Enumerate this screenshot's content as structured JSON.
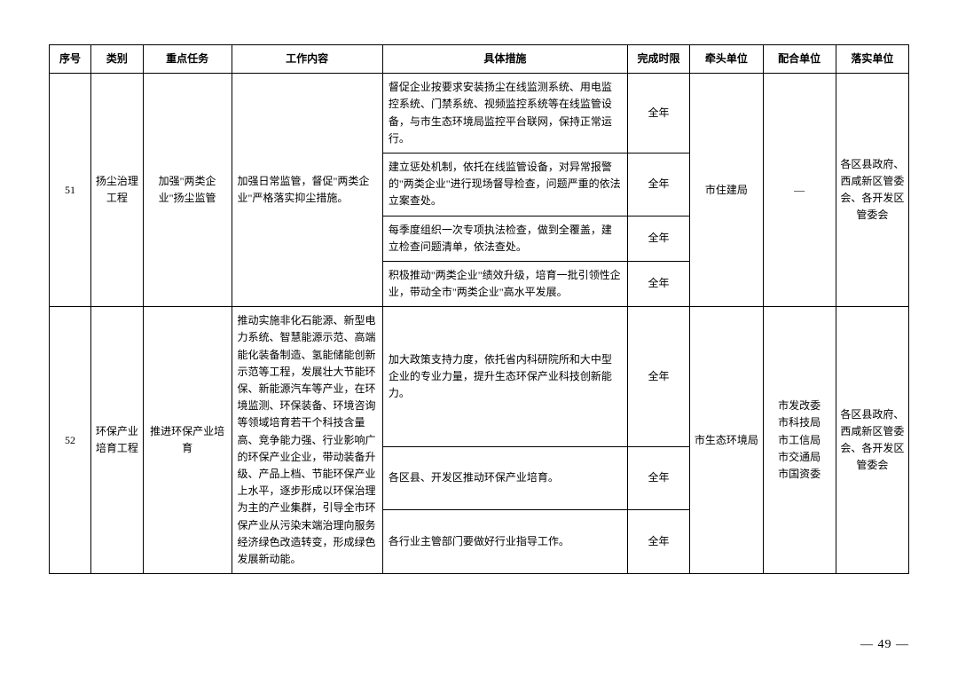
{
  "headers": {
    "seq": "序号",
    "category": "类别",
    "task": "重点任务",
    "content": "工作内容",
    "measure": "具体措施",
    "deadline": "完成时限",
    "lead": "牵头单位",
    "coop": "配合单位",
    "impl": "落实单位"
  },
  "rows": [
    {
      "seq": "51",
      "category": "扬尘治理工程",
      "task": "加强\"两类企业\"扬尘监管",
      "content": "加强日常监管，督促\"两类企业\"严格落实抑尘措施。",
      "measures": [
        "督促企业按要求安装扬尘在线监测系统、用电监控系统、门禁系统、视频监控系统等在线监管设备，与市生态环境局监控平台联网，保持正常运行。",
        "建立惩处机制，依托在线监管设备，对异常报警的\"两类企业\"进行现场督导检查，问题严重的依法立案查处。",
        "每季度组织一次专项执法检查，做到全覆盖，建立检查问题清单，依法查处。",
        "积极推动\"两类企业\"绩效升级，培育一批引领性企业，带动全市\"两类企业\"高水平发展。"
      ],
      "deadlines": [
        "全年",
        "全年",
        "全年",
        "全年"
      ],
      "lead": "市住建局",
      "coop": "—",
      "impl": "各区县政府、西咸新区管委会、各开发区管委会"
    },
    {
      "seq": "52",
      "category": "环保产业培育工程",
      "task": "推进环保产业培育",
      "content": "推动实施非化石能源、新型电力系统、智慧能源示范、高端能化装备制造、氢能储能创新示范等工程，发展壮大节能环保、新能源汽车等产业，在环境监测、环保装备、环境咨询等领域培育若干个科技含量高、竞争能力强、行业影响广的环保产业企业，带动装备升级、产品上档、节能环保产业上水平，逐步形成以环保治理为主的产业集群，引导全市环保产业从污染末端治理向服务经济绿色改造转变，形成绿色发展新动能。",
      "measures": [
        "加大政策支持力度，依托省内科研院所和大中型企业的专业力量，提升生态环保产业科技创新能力。",
        "各区县、开发区推动环保产业培育。",
        "各行业主管部门要做好行业指导工作。"
      ],
      "deadlines": [
        "全年",
        "全年",
        "全年"
      ],
      "lead": "市生态环境局",
      "coop": "市发改委\n市科技局\n市工信局\n市交通局\n市国资委",
      "impl": "各区县政府、西咸新区管委会、各开发区管委会"
    }
  ],
  "pageNumber": "— 49 —"
}
